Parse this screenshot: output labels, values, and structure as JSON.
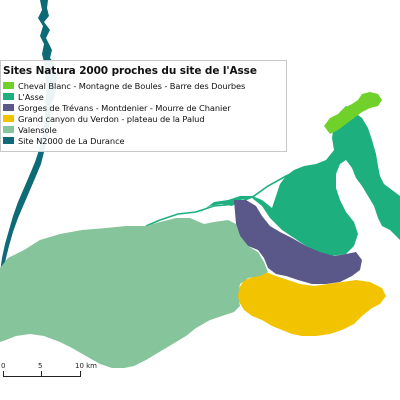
{
  "legend": {
    "title": "Sites Natura 2000 proches du site de l'Asse",
    "items": [
      {
        "label": "Cheval Blanc - Montagne de Boules - Barre des Dourbes",
        "color": "#6fd12a"
      },
      {
        "label": "L'Asse",
        "color": "#1db07e"
      },
      {
        "label": "Gorges de Trévans - Montdenier - Mourre de Chanier",
        "color": "#5a5888"
      },
      {
        "label": "Grand canyon du Verdon - plateau de la Palud",
        "color": "#f1c300"
      },
      {
        "label": "Valensole",
        "color": "#86c49c"
      },
      {
        "label": "Site N2000 de La Durance",
        "color": "#0e6a77"
      }
    ]
  },
  "scale": {
    "labels": [
      "0",
      "5",
      "10 km"
    ]
  }
}
